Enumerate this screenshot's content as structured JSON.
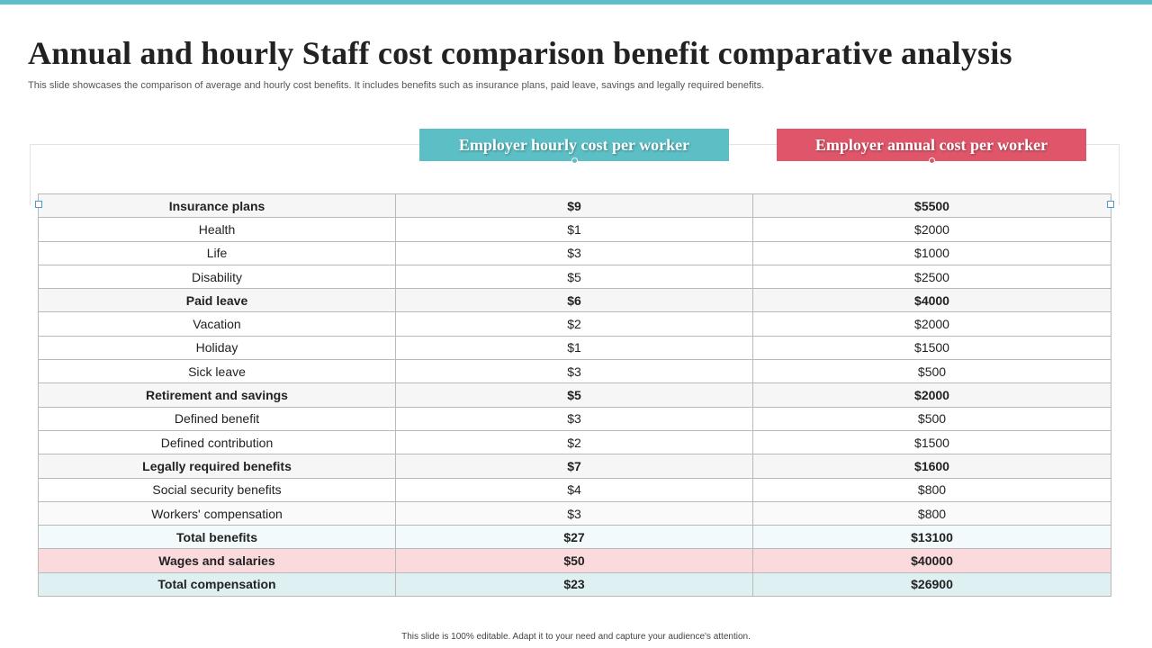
{
  "title": "Annual and hourly Staff  cost comparison benefit comparative analysis",
  "subtitle": "This slide showcases the comparison of average and hourly cost benefits. It includes benefits such as insurance plans, paid leave, savings and legally required benefits.",
  "headers": {
    "hourly": "Employer hourly cost per worker",
    "annual": "Employer annual cost per worker"
  },
  "rows": [
    {
      "label": "Insurance plans",
      "hourly": "$9",
      "annual": "$5500",
      "kind": "group"
    },
    {
      "label": "Health",
      "hourly": "$1",
      "annual": "$2000",
      "kind": "sub"
    },
    {
      "label": "Life",
      "hourly": "$3",
      "annual": "$1000",
      "kind": "sub"
    },
    {
      "label": "Disability",
      "hourly": "$5",
      "annual": "$2500",
      "kind": "sub"
    },
    {
      "label": "Paid leave",
      "hourly": "$6",
      "annual": "$4000",
      "kind": "group"
    },
    {
      "label": "Vacation",
      "hourly": "$2",
      "annual": "$2000",
      "kind": "sub"
    },
    {
      "label": "Holiday",
      "hourly": "$1",
      "annual": "$1500",
      "kind": "sub"
    },
    {
      "label": "Sick leave",
      "hourly": "$3",
      "annual": "$500",
      "kind": "sub"
    },
    {
      "label": "Retirement and savings",
      "hourly": "$5",
      "annual": "$2000",
      "kind": "group"
    },
    {
      "label": "Defined benefit",
      "hourly": "$3",
      "annual": "$500",
      "kind": "sub"
    },
    {
      "label": "Defined contribution",
      "hourly": "$2",
      "annual": "$1500",
      "kind": "sub"
    },
    {
      "label": "Legally required benefits",
      "hourly": "$7",
      "annual": "$1600",
      "kind": "group"
    },
    {
      "label": "Social security benefits",
      "hourly": "$4",
      "annual": "$800",
      "kind": "sub"
    },
    {
      "label": "Workers' compensation",
      "hourly": "$3",
      "annual": "$800",
      "kind": "sub alt"
    },
    {
      "label": "Total benefits",
      "hourly": "$27",
      "annual": "$13100",
      "kind": "total"
    },
    {
      "label": "Wages and salaries",
      "hourly": "$50",
      "annual": "$40000",
      "kind": "wages"
    },
    {
      "label": "Total compensation",
      "hourly": "$23",
      "annual": "$26900",
      "kind": "comp"
    }
  ],
  "footer": "This slide is 100% editable.  Adapt it to your need and capture your audience's attention.",
  "colors": {
    "accent_teal": "#5bbfc5",
    "accent_red": "#df5569"
  }
}
